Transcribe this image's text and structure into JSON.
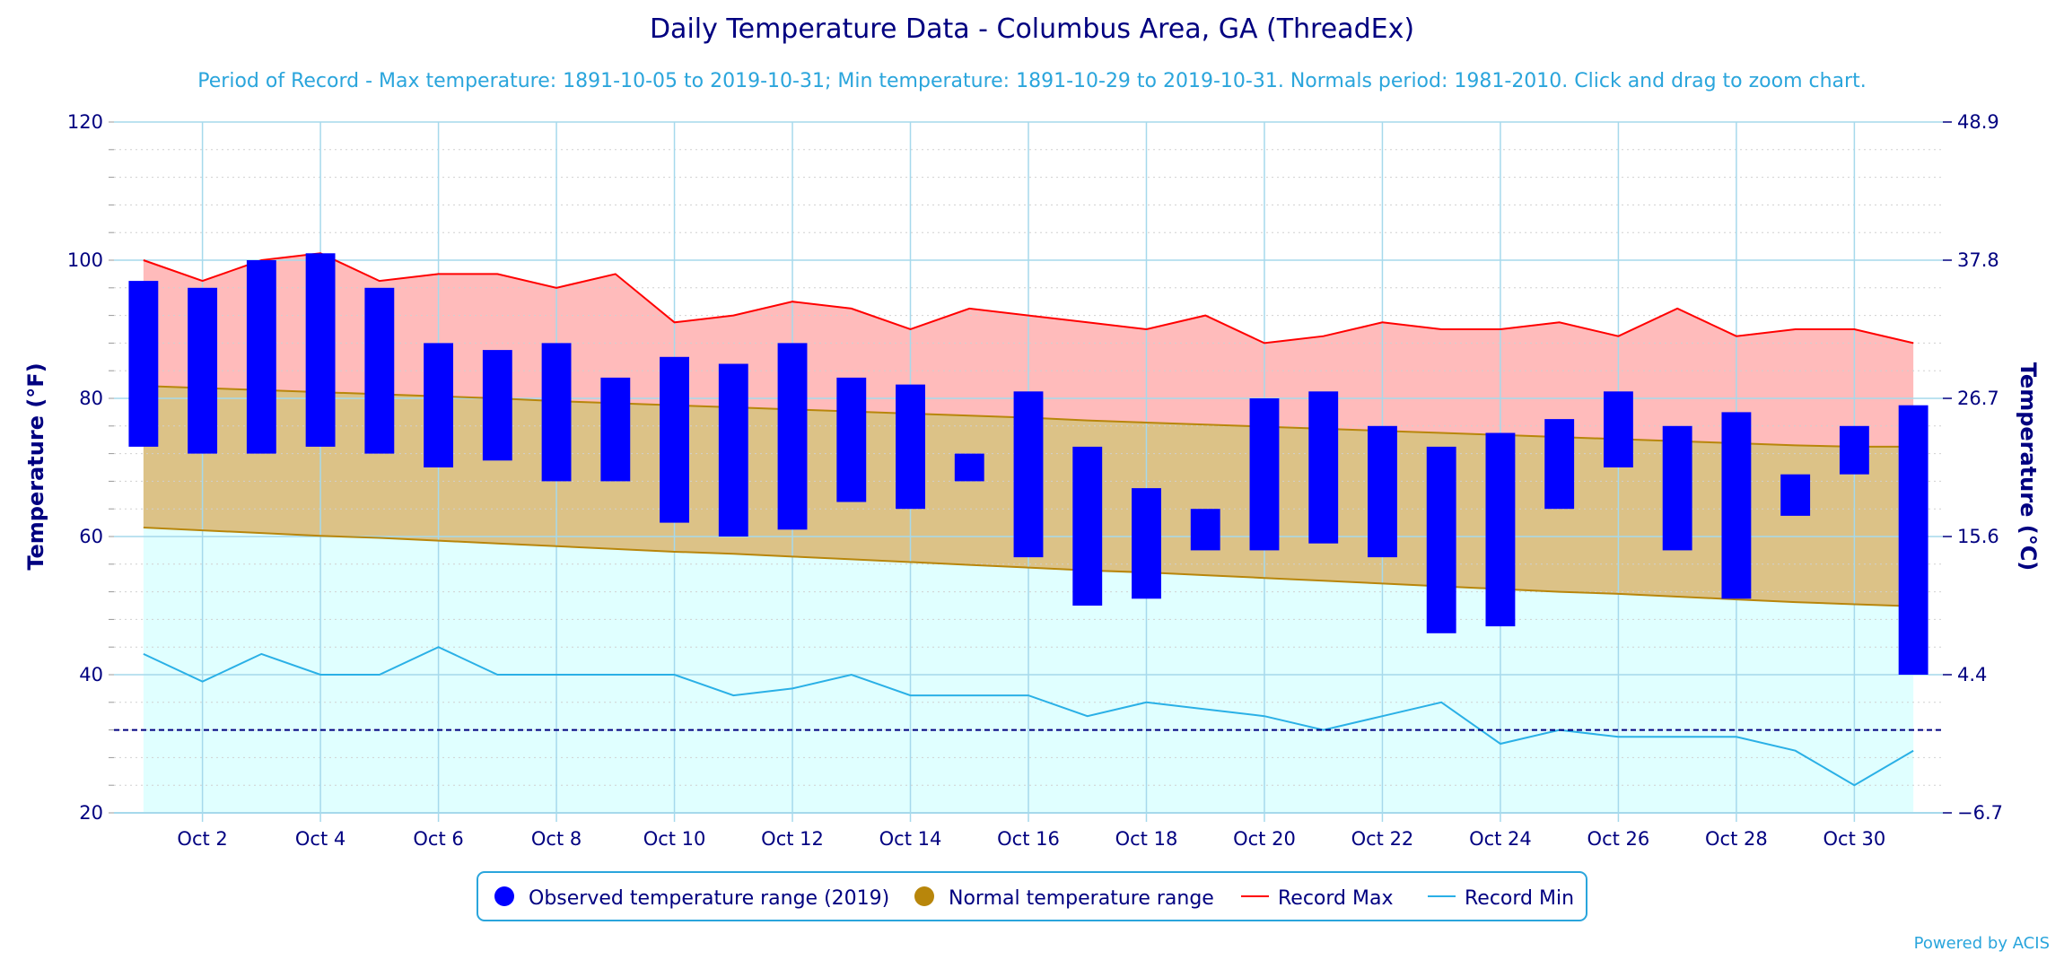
{
  "chart_data": {
    "type": "floating-bar",
    "title": "Daily Temperature Data - Columbus Area, GA (ThreadEx)",
    "subtitle": "Period of Record - Max temperature: 1891-10-05 to 2019-10-31; Min temperature: 1891-10-29 to 2019-10-31. Normals period: 1981-2010. Click and drag to zoom chart.",
    "ylabel_left": "Temperature (°F)",
    "ylabel_right": "Temperature (°C)",
    "ylim": [
      20,
      120
    ],
    "y_ticks": [
      20,
      40,
      60,
      80,
      100,
      120
    ],
    "y_ticks_right": [
      "−6.7",
      "4.4",
      "15.6",
      "26.7",
      "37.8",
      "48.9"
    ],
    "x_tick_labels": [
      {
        "day": 2,
        "label": "Oct 2"
      },
      {
        "day": 4,
        "label": "Oct 4"
      },
      {
        "day": 6,
        "label": "Oct 6"
      },
      {
        "day": 8,
        "label": "Oct 8"
      },
      {
        "day": 10,
        "label": "Oct 10"
      },
      {
        "day": 12,
        "label": "Oct 12"
      },
      {
        "day": 14,
        "label": "Oct 14"
      },
      {
        "day": 16,
        "label": "Oct 16"
      },
      {
        "day": 18,
        "label": "Oct 18"
      },
      {
        "day": 20,
        "label": "Oct 20"
      },
      {
        "day": 22,
        "label": "Oct 22"
      },
      {
        "day": 24,
        "label": "Oct 24"
      },
      {
        "day": 26,
        "label": "Oct 26"
      },
      {
        "day": 28,
        "label": "Oct 28"
      },
      {
        "day": 30,
        "label": "Oct 30"
      }
    ],
    "days": [
      1,
      2,
      3,
      4,
      5,
      6,
      7,
      8,
      9,
      10,
      11,
      12,
      13,
      14,
      15,
      16,
      17,
      18,
      19,
      20,
      21,
      22,
      23,
      24,
      25,
      26,
      27,
      28,
      29,
      30,
      31
    ],
    "freezing_line": 32,
    "grid": true,
    "legend_position": "bottom-center",
    "series": [
      {
        "name": "Observed temperature range (2019)",
        "color": "#0000ff",
        "low": [
          73,
          72,
          72,
          73,
          72,
          70,
          71,
          68,
          68,
          62,
          60,
          61,
          65,
          64,
          68,
          57,
          50,
          51,
          58,
          58,
          59,
          57,
          46,
          47,
          64,
          70,
          58,
          51,
          63,
          69,
          40
        ],
        "high": [
          97,
          96,
          100,
          101,
          96,
          88,
          87,
          88,
          83,
          86,
          85,
          88,
          83,
          82,
          72,
          81,
          73,
          67,
          64,
          80,
          81,
          76,
          73,
          75,
          77,
          81,
          76,
          78,
          69,
          76,
          79
        ]
      },
      {
        "name": "Normal temperature range",
        "color": "#b8860b",
        "low": [
          61.3,
          60.9,
          60.5,
          60.1,
          59.8,
          59.4,
          59.0,
          58.6,
          58.2,
          57.8,
          57.5,
          57.1,
          56.7,
          56.3,
          55.9,
          55.5,
          55.1,
          54.8,
          54.4,
          54.0,
          53.6,
          53.2,
          52.8,
          52.4,
          52.0,
          51.7,
          51.3,
          50.9,
          50.5,
          50.2,
          49.9
        ],
        "high": [
          81.8,
          81.5,
          81.2,
          80.9,
          80.6,
          80.3,
          80.0,
          79.6,
          79.3,
          79.0,
          78.7,
          78.4,
          78.1,
          77.8,
          77.5,
          77.2,
          76.8,
          76.5,
          76.2,
          75.9,
          75.6,
          75.3,
          75.0,
          74.7,
          74.4,
          74.1,
          73.8,
          73.5,
          73.2,
          73.0,
          73.0
        ]
      },
      {
        "name": "Record Max",
        "color": "#ff0000",
        "values": [
          100,
          97,
          100,
          101,
          97,
          98,
          98,
          96,
          98,
          91,
          92,
          94,
          93,
          90,
          93,
          92,
          91,
          90,
          92,
          88,
          89,
          91,
          90,
          90,
          91,
          89,
          93,
          89,
          90,
          90,
          88
        ]
      },
      {
        "name": "Record Min",
        "color": "#2ab0e6",
        "values": [
          43,
          39,
          43,
          40,
          40,
          44,
          40,
          40,
          40,
          40,
          37,
          38,
          40,
          37,
          37,
          37,
          34,
          36,
          35,
          34,
          32,
          34,
          36,
          30,
          32,
          31,
          31,
          31,
          29,
          24,
          29
        ]
      }
    ],
    "colors": {
      "record_band": "#ffbbbb",
      "normal_band": "#dcc287",
      "cold_band": "#e0ffff",
      "title": "#000080",
      "subtitle": "#2aa5dc",
      "gridline": "#a6d9ec",
      "freezing": "#000080"
    }
  },
  "legend": {
    "items": [
      {
        "label": "Observed temperature range (2019)",
        "color": "#0000ff",
        "symbol": "circle"
      },
      {
        "label": "Normal temperature range",
        "color": "#b8860b",
        "symbol": "circle"
      },
      {
        "label": "Record Max",
        "color": "#ff0000",
        "symbol": "line"
      },
      {
        "label": "Record Min",
        "color": "#2ab0e6",
        "symbol": "line"
      }
    ]
  },
  "credit": "Powered by ACIS"
}
